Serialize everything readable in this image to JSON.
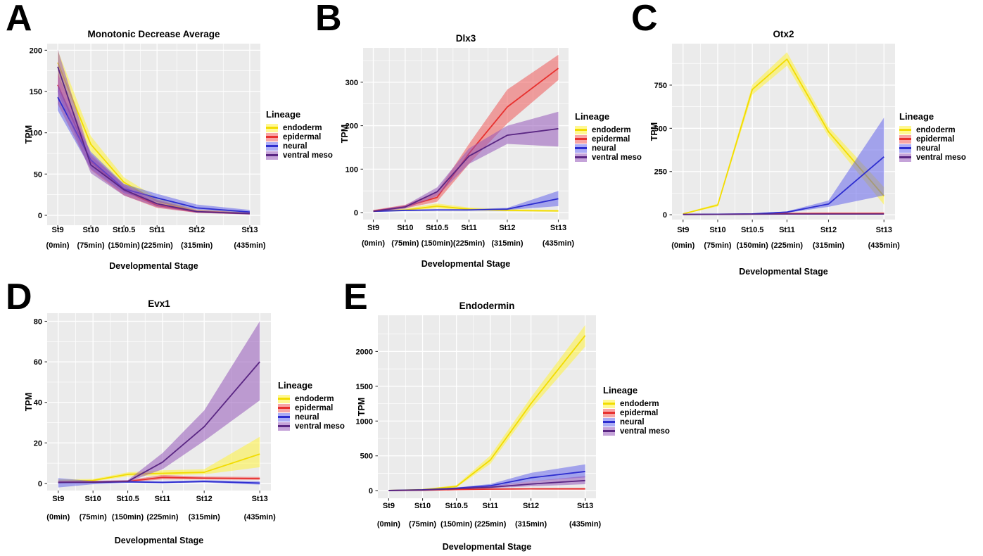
{
  "colors": {
    "panel_background": "#EBEBEB",
    "grid": "#FFFFFF",
    "tick": "#333333",
    "text": "#000000"
  },
  "lineage_legend": {
    "title": "Lineage",
    "items": [
      {
        "label": "endoderm",
        "line": "#F2DC00",
        "fill": "rgba(255,242,60,0.55)"
      },
      {
        "label": "epidermal",
        "line": "#E8302E",
        "fill": "rgba(240,75,75,0.50)"
      },
      {
        "label": "neural",
        "line": "#2D2DCF",
        "fill": "rgba(90,90,235,0.50)"
      },
      {
        "label": "ventral meso",
        "line": "#5A2683",
        "fill": "rgba(150,88,185,0.55)"
      }
    ]
  },
  "axes": {
    "x_label": "Developmental Stage",
    "y_label": "TPM",
    "stages": [
      "St9",
      "St10",
      "St10.5",
      "St11",
      "St12",
      "St13"
    ],
    "times": [
      "(0min)",
      "(75min)",
      "(150min)",
      "(225min)",
      "(315min)",
      "(435min)"
    ],
    "x_minutes": [
      0,
      75,
      150,
      225,
      315,
      435
    ]
  },
  "chart_data": [
    {
      "letter": "A",
      "title": "Monotonic Decrease Average",
      "type": "line",
      "xlabel": "Developmental Stage",
      "ylabel": "TPM",
      "legend_title": "Lineage",
      "ylim": [
        -12,
        208
      ],
      "yticks": [
        0,
        50,
        100,
        150,
        200
      ],
      "series": [
        {
          "name": "endoderm",
          "mean": [
            185,
            86,
            40,
            17,
            5,
            2.5
          ],
          "lower": [
            170,
            76,
            34,
            13,
            3.5,
            1.5
          ],
          "upper": [
            200,
            96,
            46,
            21,
            7,
            4
          ]
        },
        {
          "name": "epidermal",
          "mean": [
            158,
            65,
            30,
            12,
            4,
            2
          ],
          "lower": [
            135,
            55,
            24,
            9,
            3,
            1
          ],
          "upper": [
            172,
            75,
            36,
            15,
            6,
            3
          ]
        },
        {
          "name": "neural",
          "mean": [
            143,
            67,
            32,
            21,
            9,
            4
          ],
          "lower": [
            127,
            56,
            27,
            16,
            7,
            2.5
          ],
          "upper": [
            158,
            77,
            38,
            26,
            13,
            6.5
          ]
        },
        {
          "name": "ventral meso",
          "mean": [
            180,
            61,
            31,
            14,
            4.5,
            2
          ],
          "lower": [
            150,
            51,
            24,
            10,
            3,
            1
          ],
          "upper": [
            201,
            72,
            38,
            19,
            6.5,
            3.5
          ]
        }
      ]
    },
    {
      "letter": "B",
      "title": "Dlx3",
      "type": "line",
      "xlabel": "Developmental Stage",
      "ylabel": "TPM",
      "legend_title": "Lineage",
      "ylim": [
        -16,
        379
      ],
      "yticks": [
        0,
        100,
        200,
        300
      ],
      "series": [
        {
          "name": "endoderm",
          "mean": [
            3,
            6,
            15,
            8,
            5,
            4
          ],
          "lower": [
            2,
            4,
            10,
            5,
            3,
            2
          ],
          "upper": [
            5,
            9,
            21,
            12,
            8,
            6
          ]
        },
        {
          "name": "epidermal",
          "mean": [
            4,
            14,
            35,
            136,
            243,
            332
          ],
          "lower": [
            2,
            10,
            25,
            112,
            205,
            305
          ],
          "upper": [
            6,
            18,
            48,
            158,
            283,
            363
          ]
        },
        {
          "name": "neural",
          "mean": [
            3,
            5,
            6,
            6,
            8,
            32
          ],
          "lower": [
            2,
            4,
            5,
            5,
            6,
            15
          ],
          "upper": [
            4,
            7,
            8,
            8,
            11,
            50
          ]
        },
        {
          "name": "ventral meso",
          "mean": [
            3,
            13,
            48,
            130,
            178,
            193
          ],
          "lower": [
            2,
            9,
            38,
            112,
            158,
            152
          ],
          "upper": [
            5,
            17,
            58,
            148,
            200,
            232
          ]
        }
      ]
    },
    {
      "letter": "C",
      "title": "Otx2",
      "type": "line",
      "xlabel": "Developmental Stage",
      "ylabel": "TPM",
      "legend_title": "Lineage",
      "ylim": [
        -28,
        990
      ],
      "yticks": [
        0,
        250,
        500,
        750
      ],
      "series": [
        {
          "name": "endoderm",
          "mean": [
            5,
            56,
            725,
            900,
            480,
            108
          ],
          "lower": [
            3,
            48,
            695,
            862,
            452,
            58
          ],
          "upper": [
            8,
            64,
            752,
            940,
            508,
            160
          ]
        },
        {
          "name": "epidermal",
          "mean": [
            2,
            3,
            4,
            7,
            8,
            8
          ],
          "lower": [
            1,
            2,
            3,
            5,
            6,
            6
          ],
          "upper": [
            3,
            4,
            6,
            9,
            10,
            11
          ]
        },
        {
          "name": "neural",
          "mean": [
            2,
            3,
            5,
            15,
            62,
            335
          ],
          "lower": [
            1,
            2,
            4,
            11,
            46,
            112
          ],
          "upper": [
            3,
            4,
            7,
            20,
            82,
            562
          ]
        },
        {
          "name": "ventral meso",
          "mean": [
            1,
            2,
            3,
            4,
            4,
            4
          ],
          "lower": [
            0.5,
            1,
            2,
            3,
            3,
            3
          ],
          "upper": [
            2,
            3,
            4,
            6,
            6,
            6
          ]
        }
      ]
    },
    {
      "letter": "D",
      "title": "Evx1",
      "type": "line",
      "xlabel": "Developmental Stage",
      "ylabel": "TPM",
      "legend_title": "Lineage",
      "ylim": [
        -3.5,
        84
      ],
      "yticks": [
        0,
        20,
        40,
        60,
        80
      ],
      "series": [
        {
          "name": "endoderm",
          "mean": [
            1,
            1.5,
            4.5,
            5,
            5.5,
            14.5
          ],
          "lower": [
            0.5,
            1,
            3.5,
            4,
            4.5,
            8
          ],
          "upper": [
            2,
            2.2,
            5.5,
            6.5,
            7,
            23
          ]
        },
        {
          "name": "epidermal",
          "mean": [
            0.5,
            0.8,
            1,
            3,
            2.6,
            2.4
          ],
          "lower": [
            0.1,
            0.4,
            0.7,
            2,
            2,
            1.8
          ],
          "upper": [
            1.2,
            1.3,
            1.6,
            4.2,
            3.4,
            3.2
          ]
        },
        {
          "name": "neural",
          "mean": [
            0.4,
            0.5,
            0.8,
            0.5,
            1,
            0.2
          ],
          "lower": [
            -2,
            -0.4,
            0.3,
            0.1,
            0.5,
            -0.6
          ],
          "upper": [
            2.6,
            1.2,
            1.4,
            1.1,
            1.6,
            1
          ]
        },
        {
          "name": "ventral meso",
          "mean": [
            0.5,
            0.6,
            1,
            10.5,
            28,
            60
          ],
          "lower": [
            0.1,
            0.3,
            0.7,
            7,
            21,
            41
          ],
          "upper": [
            1.4,
            1.1,
            1.6,
            15,
            36,
            80
          ]
        }
      ]
    },
    {
      "letter": "E",
      "title": "Endodermin",
      "type": "line",
      "xlabel": "Developmental Stage",
      "ylabel": "TPM",
      "legend_title": "Lineage",
      "ylim": [
        -110,
        2520
      ],
      "yticks": [
        0,
        500,
        1000,
        1500,
        2000
      ],
      "series": [
        {
          "name": "endoderm",
          "mean": [
            2,
            15,
            60,
            440,
            1250,
            2230
          ],
          "lower": [
            1,
            10,
            45,
            385,
            1175,
            2070
          ],
          "upper": [
            4,
            22,
            80,
            505,
            1340,
            2380
          ]
        },
        {
          "name": "epidermal",
          "mean": [
            2,
            5,
            15,
            22,
            25,
            25
          ],
          "lower": [
            1,
            3,
            10,
            15,
            16,
            14
          ],
          "upper": [
            3,
            8,
            22,
            32,
            38,
            40
          ]
        },
        {
          "name": "neural",
          "mean": [
            2,
            12,
            35,
            70,
            185,
            275
          ],
          "lower": [
            1,
            9,
            28,
            50,
            135,
            190
          ],
          "upper": [
            3,
            16,
            45,
            95,
            255,
            378
          ]
        },
        {
          "name": "ventral meso",
          "mean": [
            2,
            8,
            28,
            48,
            95,
            145
          ],
          "lower": [
            1,
            5,
            20,
            36,
            62,
            92
          ],
          "upper": [
            3,
            12,
            38,
            62,
            135,
            210
          ]
        }
      ]
    }
  ]
}
